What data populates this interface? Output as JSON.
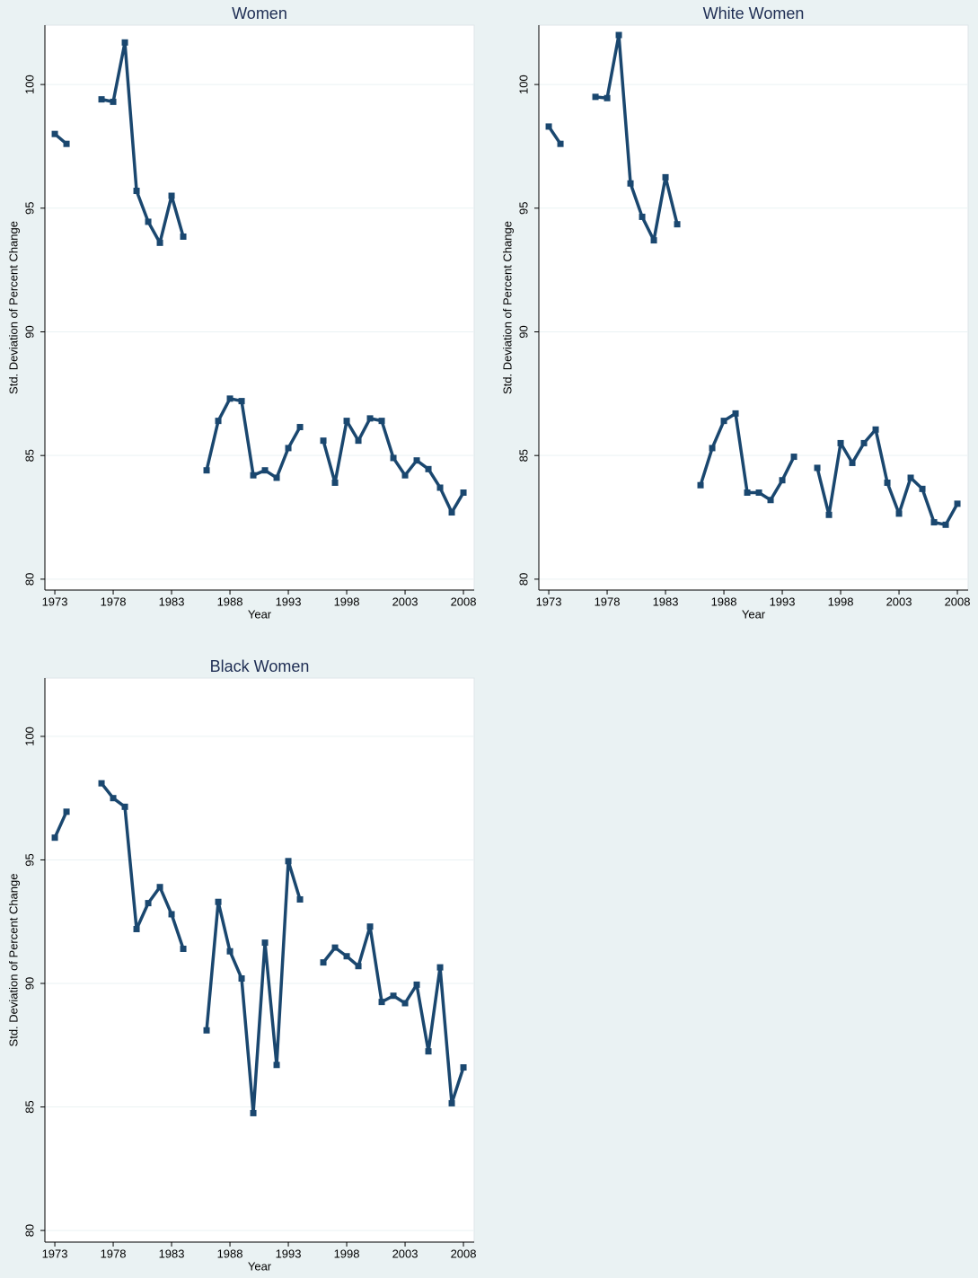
{
  "chart_data": [
    {
      "type": "line",
      "title": "Women",
      "x_label": "Year",
      "y_label": "Std. Deviation of Percent Change",
      "color": "#1a476f",
      "grid": true,
      "x": [
        1973,
        1974,
        1975,
        1976,
        1977,
        1978,
        1979,
        1980,
        1981,
        1982,
        1983,
        1984,
        1985,
        1986,
        1987,
        1988,
        1989,
        1990,
        1991,
        1992,
        1993,
        1994,
        1995,
        1996,
        1997,
        1998,
        1999,
        2000,
        2001,
        2002,
        2003,
        2004,
        2005,
        2006,
        2007,
        2008
      ],
      "values": [
        98.0,
        97.6,
        null,
        null,
        99.4,
        99.3,
        101.7,
        95.7,
        94.45,
        93.6,
        95.5,
        93.85,
        null,
        84.4,
        86.4,
        87.3,
        87.2,
        84.2,
        84.4,
        84.1,
        85.3,
        86.15,
        null,
        85.6,
        83.9,
        86.4,
        85.6,
        86.5,
        86.4,
        84.9,
        84.2,
        84.8,
        84.45,
        83.7,
        82.7,
        83.5
      ],
      "xlim": [
        1972.15,
        2008.92
      ],
      "xticks": [
        1973,
        1978,
        1983,
        1988,
        1993,
        1998,
        2003,
        2008
      ],
      "ylim": [
        79.56,
        102.4
      ],
      "yticks": [
        80,
        85,
        90,
        95,
        100
      ]
    },
    {
      "type": "line",
      "title": "White Women",
      "x_label": "Year",
      "y_label": "Std. Deviation of Percent Change",
      "color": "#1a476f",
      "grid": true,
      "x": [
        1973,
        1974,
        1975,
        1976,
        1977,
        1978,
        1979,
        1980,
        1981,
        1982,
        1983,
        1984,
        1985,
        1986,
        1987,
        1988,
        1989,
        1990,
        1991,
        1992,
        1993,
        1994,
        1995,
        1996,
        1997,
        1998,
        1999,
        2000,
        2001,
        2002,
        2003,
        2004,
        2005,
        2006,
        2007,
        2008
      ],
      "values": [
        98.3,
        97.6,
        null,
        null,
        99.5,
        99.45,
        102.0,
        96.0,
        94.65,
        93.7,
        96.25,
        94.35,
        null,
        83.8,
        85.3,
        86.4,
        86.7,
        83.5,
        83.5,
        83.2,
        84.0,
        84.95,
        null,
        84.5,
        82.6,
        85.5,
        84.7,
        85.5,
        86.05,
        83.9,
        82.65,
        84.1,
        83.65,
        82.3,
        82.2,
        83.05
      ],
      "xlim": [
        1972.15,
        2008.92
      ],
      "xticks": [
        1973,
        1978,
        1983,
        1988,
        1993,
        1998,
        2003,
        2008
      ],
      "ylim": [
        79.56,
        102.4
      ],
      "yticks": [
        80,
        85,
        90,
        95,
        100
      ]
    },
    {
      "type": "line",
      "title": "Black Women",
      "x_label": "Year",
      "y_label": "Std. Deviation of Percent Change",
      "color": "#1a476f",
      "grid": true,
      "x": [
        1973,
        1974,
        1975,
        1976,
        1977,
        1978,
        1979,
        1980,
        1981,
        1982,
        1983,
        1984,
        1985,
        1986,
        1987,
        1988,
        1989,
        1990,
        1991,
        1992,
        1993,
        1994,
        1995,
        1996,
        1997,
        1998,
        1999,
        2000,
        2001,
        2002,
        2003,
        2004,
        2005,
        2006,
        2007,
        2008
      ],
      "values": [
        95.9,
        96.95,
        null,
        null,
        98.1,
        97.5,
        97.15,
        92.2,
        93.25,
        93.9,
        92.8,
        91.4,
        null,
        88.1,
        93.3,
        91.3,
        90.2,
        84.75,
        91.65,
        86.7,
        94.95,
        93.4,
        null,
        90.85,
        91.45,
        91.1,
        90.7,
        92.3,
        89.25,
        89.5,
        89.2,
        89.95,
        87.25,
        90.65,
        85.15,
        86.6
      ],
      "xlim": [
        1972.15,
        2008.92
      ],
      "xticks": [
        1973,
        1978,
        1983,
        1988,
        1993,
        1998,
        2003,
        2008
      ],
      "ylim": [
        79.53,
        102.36
      ],
      "yticks": [
        80,
        85,
        90,
        95,
        100
      ]
    }
  ]
}
